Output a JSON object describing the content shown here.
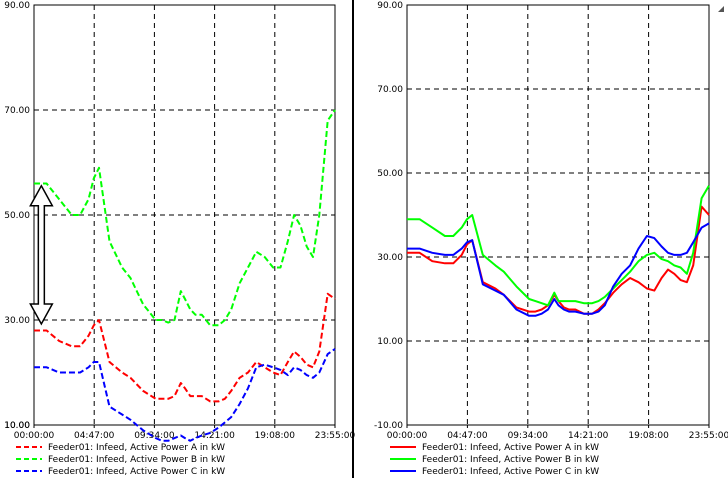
{
  "chart_data": [
    {
      "type": "line",
      "panel": "left",
      "line_style": "dashed",
      "ylim": [
        10,
        90
      ],
      "y_ticks": [
        "90.00",
        "70.00",
        "50.00",
        "30.00",
        "10.00"
      ],
      "y_tick_values": [
        90,
        70,
        50,
        30,
        10
      ],
      "bottom_label": "10.00",
      "x_ticks": [
        "00:00:00",
        "04:47:00",
        "09:34:00",
        "14:21:00",
        "19:08:00",
        "23:55:00"
      ],
      "x_tick_minutes": [
        0,
        287,
        574,
        861,
        1148,
        1435
      ],
      "xlim_minutes": [
        0,
        1435
      ],
      "annotation": "double-headed vertical arrow between Power B and Power A at start of day",
      "annotation_range": [
        30,
        55
      ],
      "annotation_x_minutes": 35,
      "series": [
        {
          "name": "Feeder01: Infeed, Active Power A in kW",
          "color": "#ff0000",
          "x": [
            0,
            60,
            120,
            180,
            220,
            260,
            285,
            310,
            360,
            420,
            460,
            520,
            580,
            610,
            640,
            670,
            700,
            720,
            745,
            770,
            800,
            840,
            880,
            910,
            940,
            980,
            1020,
            1060,
            1100,
            1140,
            1175,
            1210,
            1240,
            1270,
            1300,
            1330,
            1360,
            1400,
            1435
          ],
          "values": [
            28,
            28,
            26,
            25,
            25,
            27,
            29,
            30,
            22,
            20,
            19,
            16.5,
            15,
            15,
            15,
            15.5,
            18,
            17,
            15.5,
            15.5,
            15.5,
            14.5,
            14.5,
            15,
            16.5,
            19,
            20,
            22,
            21,
            20,
            19.5,
            22,
            24,
            23,
            21.5,
            21,
            24,
            35,
            34
          ]
        },
        {
          "name": "Feeder01: Infeed, Active Power B in kW",
          "color": "#00ff00",
          "x": [
            0,
            60,
            120,
            180,
            220,
            260,
            285,
            310,
            360,
            420,
            460,
            520,
            580,
            610,
            640,
            670,
            700,
            720,
            745,
            770,
            800,
            840,
            880,
            910,
            940,
            980,
            1020,
            1060,
            1100,
            1140,
            1175,
            1210,
            1240,
            1270,
            1300,
            1330,
            1360,
            1400,
            1435
          ],
          "values": [
            56,
            56,
            53,
            50,
            50,
            53,
            57,
            59,
            45,
            40,
            38,
            33,
            30,
            30,
            29.5,
            30,
            35.5,
            34,
            32,
            31,
            31,
            29,
            29,
            30,
            32,
            37,
            40,
            43,
            42,
            40,
            40,
            45,
            50,
            48,
            44,
            42,
            50,
            68,
            70
          ]
        },
        {
          "name": "Feeder01: Infeed, Active Power C in kW",
          "color": "#0000ff",
          "x": [
            0,
            60,
            120,
            180,
            220,
            260,
            285,
            310,
            360,
            420,
            460,
            520,
            580,
            610,
            640,
            670,
            700,
            720,
            745,
            770,
            800,
            840,
            880,
            910,
            940,
            980,
            1020,
            1060,
            1100,
            1140,
            1175,
            1210,
            1240,
            1270,
            1300,
            1330,
            1360,
            1400,
            1435
          ],
          "values": [
            21,
            21,
            20,
            20,
            20,
            21,
            22,
            22,
            13.5,
            12,
            11,
            9,
            7.5,
            7,
            7,
            7.5,
            8,
            7.5,
            7,
            7.5,
            8,
            8.5,
            9.5,
            10.5,
            11.5,
            14,
            17,
            21,
            21.5,
            21,
            20.5,
            19.5,
            21,
            20.5,
            19.5,
            19,
            20,
            23.5,
            24.5
          ]
        }
      ],
      "legend": [
        {
          "label": "Feeder01: Infeed, Active Power A in kW",
          "color": "#ff0000"
        },
        {
          "label": "Feeder01: Infeed, Active Power B in kW",
          "color": "#00ff00"
        },
        {
          "label": "Feeder01: Infeed, Active Power C in kW",
          "color": "#0000ff"
        }
      ]
    },
    {
      "type": "line",
      "panel": "right",
      "line_style": "solid",
      "ylim": [
        -10,
        90
      ],
      "y_ticks": [
        "90.00",
        "70.00",
        "50.00",
        "30.00",
        "10.00"
      ],
      "y_tick_values": [
        90,
        70,
        50,
        30,
        10
      ],
      "bottom_label": "-10.00",
      "x_ticks": [
        "00:00:00",
        "04:47:00",
        "09:34:00",
        "14:21:00",
        "19:08:00",
        "23:55:00"
      ],
      "x_tick_minutes": [
        0,
        287,
        574,
        861,
        1148,
        1435
      ],
      "xlim_minutes": [
        0,
        1435
      ],
      "series": [
        {
          "name": "Feeder01: Infeed, Active Power A in kW",
          "color": "#ff0000",
          "x": [
            0,
            60,
            120,
            180,
            220,
            260,
            285,
            310,
            360,
            420,
            460,
            520,
            580,
            610,
            640,
            670,
            700,
            720,
            745,
            770,
            800,
            840,
            880,
            910,
            940,
            980,
            1020,
            1060,
            1100,
            1140,
            1175,
            1210,
            1240,
            1270,
            1300,
            1330,
            1360,
            1400,
            1435
          ],
          "values": [
            31,
            31,
            29,
            28.5,
            28.5,
            30.5,
            33,
            34,
            24,
            22.5,
            21,
            18,
            17,
            17,
            17.5,
            18.5,
            21,
            19.5,
            18,
            17.5,
            17.5,
            16.5,
            16.5,
            17.5,
            19,
            21.5,
            23.5,
            25,
            24,
            22.5,
            22,
            25,
            27,
            26,
            24.5,
            24,
            28,
            42,
            40
          ]
        },
        {
          "name": "Feeder01: Infeed, Active Power B in kW",
          "color": "#00ff00",
          "x": [
            0,
            60,
            120,
            180,
            220,
            260,
            285,
            310,
            360,
            420,
            460,
            520,
            580,
            610,
            640,
            670,
            700,
            720,
            745,
            770,
            800,
            840,
            880,
            910,
            940,
            980,
            1020,
            1060,
            1100,
            1140,
            1175,
            1210,
            1240,
            1270,
            1300,
            1330,
            1360,
            1400,
            1435
          ],
          "values": [
            39,
            39,
            37,
            35,
            35,
            37,
            39,
            40,
            30.5,
            28,
            26.5,
            23,
            20,
            19.5,
            19,
            18.5,
            21.5,
            19.5,
            19.5,
            19.5,
            19.5,
            19,
            19,
            19.5,
            20.5,
            22.5,
            24.5,
            26.5,
            29,
            30.5,
            31,
            29.5,
            29,
            28,
            27.5,
            26,
            31,
            44,
            47
          ]
        },
        {
          "name": "Feeder01: Infeed, Active Power C in kW",
          "color": "#0000ff",
          "x": [
            0,
            60,
            120,
            180,
            220,
            260,
            285,
            310,
            360,
            420,
            460,
            520,
            580,
            610,
            640,
            670,
            700,
            720,
            745,
            770,
            800,
            840,
            880,
            910,
            940,
            980,
            1020,
            1060,
            1100,
            1140,
            1175,
            1210,
            1240,
            1270,
            1300,
            1330,
            1360,
            1400,
            1435
          ],
          "values": [
            32,
            32,
            31,
            30.5,
            30.5,
            32,
            33.5,
            34,
            23.5,
            22,
            21,
            17.5,
            16,
            16,
            16.5,
            17.5,
            20,
            18.5,
            17.5,
            17,
            17,
            16.5,
            16.5,
            17,
            18.5,
            23,
            26,
            28,
            32,
            35,
            34.5,
            32.5,
            31,
            30.5,
            30.5,
            31,
            33.5,
            37,
            38
          ]
        }
      ],
      "legend": [
        {
          "label": "Feeder01: Infeed, Active Power A in kW",
          "color": "#ff0000"
        },
        {
          "label": "Feeder01: Infeed, Active Power B in kW",
          "color": "#00ff00"
        },
        {
          "label": "Feeder01: Infeed, Active Power C in kW",
          "color": "#0000ff"
        }
      ]
    }
  ]
}
